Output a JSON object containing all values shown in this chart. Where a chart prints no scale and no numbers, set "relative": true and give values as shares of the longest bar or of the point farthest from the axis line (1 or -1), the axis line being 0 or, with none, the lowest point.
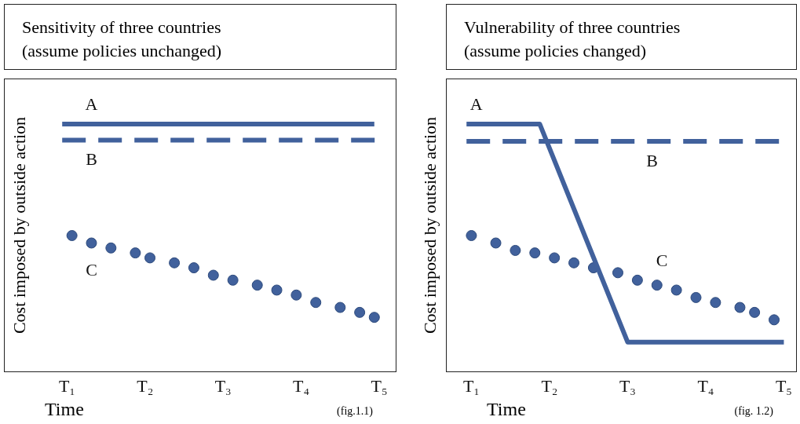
{
  "chart_data": [
    {
      "type": "line",
      "title": "Sensitivity of three countries\n(assume policies unchanged)",
      "xlabel": "Time",
      "ylabel": "Cost imposed by outside action",
      "relative": true,
      "legend": false,
      "grid": false,
      "categories": [
        null,
        null,
        "T₁",
        null,
        null,
        null,
        null,
        null,
        null,
        null,
        null,
        null,
        null,
        null,
        null,
        null,
        null,
        null,
        "T₂",
        null,
        null,
        null,
        null,
        null,
        null,
        null,
        null,
        null,
        null,
        null,
        null,
        null,
        null,
        null,
        "T₃",
        null,
        null,
        null,
        null,
        null,
        null,
        null,
        null,
        null,
        null,
        null,
        null,
        null,
        null,
        null,
        "T₄",
        null,
        null,
        null,
        null,
        null,
        null,
        null,
        null,
        null,
        null,
        null,
        null,
        null,
        null,
        null,
        "T₅"
      ],
      "series": [
        {
          "name": "A",
          "color": "#41619c",
          "line_style": "solid",
          "marker": "none",
          "values": [
            null,
            1,
            null,
            null,
            null,
            null,
            null,
            null,
            null,
            null,
            null,
            null,
            null,
            null,
            null,
            null,
            null,
            null,
            null,
            null,
            null,
            null,
            null,
            null,
            null,
            null,
            null,
            null,
            null,
            null,
            null,
            null,
            null,
            null,
            null,
            null,
            null,
            null,
            null,
            null,
            null,
            null,
            null,
            null,
            null,
            null,
            null,
            null,
            null,
            null,
            null,
            null,
            null,
            null,
            null,
            null,
            null,
            null,
            null,
            null,
            null,
            null,
            null,
            null,
            null,
            1,
            null
          ]
        },
        {
          "name": "B",
          "color": "#41619c",
          "line_style": "dashed",
          "marker": "none",
          "values": [
            null,
            0.935,
            null,
            null,
            null,
            null,
            null,
            null,
            null,
            null,
            null,
            null,
            null,
            null,
            null,
            null,
            null,
            null,
            null,
            null,
            null,
            null,
            null,
            null,
            null,
            null,
            null,
            null,
            null,
            null,
            null,
            null,
            null,
            null,
            null,
            null,
            null,
            null,
            null,
            null,
            null,
            null,
            null,
            null,
            null,
            null,
            null,
            null,
            null,
            null,
            null,
            null,
            null,
            null,
            null,
            null,
            null,
            null,
            null,
            null,
            null,
            null,
            null,
            null,
            null,
            null,
            0.935
          ]
        },
        {
          "name": "C",
          "type": "scatter",
          "color": "#41619c",
          "marker": "circle",
          "values": [
            null,
            null,
            null,
            0.55,
            null,
            null,
            null,
            0.52,
            null,
            null,
            null,
            0.5,
            null,
            null,
            null,
            null,
            0.48,
            null,
            null,
            0.46,
            null,
            null,
            null,
            null,
            0.44,
            null,
            null,
            null,
            0.42,
            null,
            null,
            null,
            0.39,
            null,
            null,
            null,
            0.37,
            null,
            null,
            null,
            null,
            0.35,
            null,
            null,
            null,
            0.33,
            null,
            null,
            null,
            0.31,
            null,
            null,
            null,
            0.28,
            null,
            null,
            null,
            null,
            0.26,
            null,
            null,
            null,
            0.24,
            null,
            null,
            0.22,
            null
          ]
        }
      ],
      "annotations": [
        "(fig.1.1)"
      ]
    },
    {
      "type": "line",
      "title": "Vulnerability of three countries\n(assume policies changed)",
      "xlabel": "Time",
      "ylabel": "Cost imposed by outside action",
      "relative": true,
      "legend": false,
      "grid": false,
      "categories": [
        null,
        null,
        "T₁",
        null,
        null,
        null,
        null,
        null,
        null,
        null,
        null,
        null,
        null,
        null,
        null,
        null,
        null,
        null,
        "T₂",
        null,
        null,
        null,
        null,
        null,
        null,
        null,
        null,
        null,
        null,
        null,
        null,
        null,
        null,
        null,
        "T₃",
        null,
        null,
        null,
        null,
        null,
        null,
        null,
        null,
        null,
        null,
        null,
        null,
        null,
        null,
        null,
        "T₄",
        null,
        null,
        null,
        null,
        null,
        null,
        null,
        null,
        null,
        null,
        null,
        null,
        null,
        null,
        null,
        "T₅"
      ],
      "series": [
        {
          "name": "A",
          "color": "#41619c",
          "line_style": "solid",
          "marker": "none",
          "values": [
            null,
            1,
            null,
            null,
            null,
            null,
            null,
            null,
            null,
            null,
            null,
            null,
            null,
            null,
            null,
            null,
            1,
            null,
            null,
            null,
            null,
            null,
            null,
            null,
            null,
            null,
            null,
            null,
            null,
            null,
            null,
            null,
            null,
            null,
            0.12,
            null,
            null,
            null,
            null,
            null,
            null,
            null,
            null,
            null,
            null,
            null,
            null,
            null,
            null,
            null,
            null,
            null,
            null,
            null,
            null,
            null,
            null,
            null,
            null,
            null,
            null,
            null,
            null,
            null,
            null,
            null,
            0.12
          ]
        },
        {
          "name": "B",
          "color": "#41619c",
          "line_style": "dashed",
          "marker": "none",
          "values": [
            null,
            0.93,
            null,
            null,
            null,
            null,
            null,
            null,
            null,
            null,
            null,
            null,
            null,
            null,
            null,
            null,
            null,
            null,
            null,
            null,
            null,
            null,
            null,
            null,
            null,
            null,
            null,
            null,
            null,
            null,
            null,
            null,
            null,
            null,
            null,
            null,
            null,
            null,
            null,
            null,
            null,
            null,
            null,
            null,
            null,
            null,
            null,
            null,
            null,
            null,
            null,
            null,
            null,
            null,
            null,
            null,
            null,
            null,
            null,
            null,
            null,
            null,
            null,
            null,
            null,
            0.93,
            null
          ]
        },
        {
          "name": "C",
          "type": "scatter",
          "color": "#41619c",
          "marker": "circle",
          "values": [
            null,
            null,
            0.55,
            null,
            null,
            null,
            null,
            0.52,
            null,
            null,
            null,
            0.49,
            null,
            null,
            null,
            0.48,
            null,
            null,
            null,
            0.46,
            null,
            null,
            null,
            0.44,
            null,
            null,
            null,
            0.42,
            null,
            null,
            null,
            null,
            0.4,
            null,
            null,
            null,
            0.37,
            null,
            null,
            null,
            0.35,
            null,
            null,
            null,
            0.33,
            null,
            null,
            null,
            0.3,
            null,
            null,
            null,
            0.28,
            null,
            null,
            null,
            null,
            0.26,
            null,
            null,
            0.24,
            null,
            null,
            null,
            0.21,
            null,
            null
          ]
        }
      ],
      "annotations": [
        "(fig. 1.2)"
      ]
    }
  ]
}
